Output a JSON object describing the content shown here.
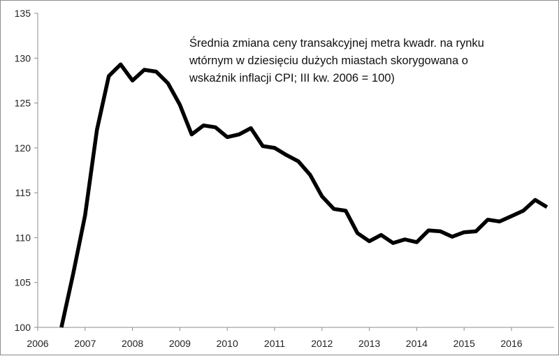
{
  "chart_data": {
    "type": "line",
    "title_lines": [
      "Średnia zmiana ceny transakcyjnej metra kwadr. na rynku",
      "wtórnym w dziesięciu dużych miastach skorygowana o",
      "wskaźnik inflacji CPI; III kw. 2006 = 100)"
    ],
    "xlabel": "",
    "ylabel": "",
    "xlim": [
      2006,
      2016.9
    ],
    "ylim": [
      100,
      135
    ],
    "x_ticks": [
      "2006",
      "2007",
      "2008",
      "2009",
      "2010",
      "2011",
      "2012",
      "2013",
      "2014",
      "2015",
      "2016"
    ],
    "y_ticks": [
      "100",
      "105",
      "110",
      "115",
      "120",
      "125",
      "130",
      "135"
    ],
    "grid": false,
    "legend": "none",
    "line_color": "#000000",
    "series": [
      {
        "x": [
          2006.5,
          2006.75,
          2007.0,
          2007.25,
          2007.5,
          2007.75,
          2008.0,
          2008.25,
          2008.5,
          2008.75,
          2009.0,
          2009.25,
          2009.5,
          2009.75,
          2010.0,
          2010.25,
          2010.5,
          2010.75,
          2011.0,
          2011.25,
          2011.5,
          2011.75,
          2012.0,
          2012.25,
          2012.5,
          2012.75,
          2013.0,
          2013.25,
          2013.5,
          2013.75,
          2014.0,
          2014.25,
          2014.5,
          2014.75,
          2015.0,
          2015.25,
          2015.5,
          2015.75,
          2016.0,
          2016.25,
          2016.5,
          2016.75
        ],
        "values": [
          100.0,
          106.0,
          112.5,
          122.0,
          128.0,
          129.3,
          127.5,
          128.7,
          128.5,
          127.2,
          124.8,
          121.5,
          122.5,
          122.3,
          121.2,
          121.5,
          122.2,
          120.2,
          120.0,
          119.2,
          118.5,
          117.0,
          114.6,
          113.2,
          113.0,
          110.5,
          109.6,
          110.3,
          109.4,
          109.8,
          109.5,
          110.8,
          110.7,
          110.1,
          110.6,
          110.7,
          112.0,
          111.8,
          112.4,
          113.0,
          114.2,
          113.4
        ]
      }
    ]
  }
}
